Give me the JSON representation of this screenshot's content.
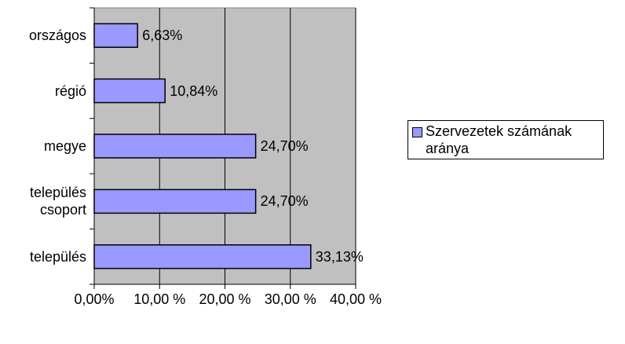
{
  "chart_data": {
    "type": "bar",
    "orientation": "horizontal",
    "categories": [
      "országos",
      "régió",
      "megye",
      "település csoport",
      "település"
    ],
    "series": [
      {
        "name": "Szervezetek számának aránya",
        "color": "#9999ff",
        "values": [
          6.63,
          10.84,
          24.7,
          24.7,
          33.13
        ],
        "value_labels": [
          "6,63%",
          "10,84%",
          "24,70%",
          "24,70%",
          "33,13%"
        ]
      }
    ],
    "xlim": [
      0,
      40
    ],
    "xticks": [
      {
        "value": 0,
        "label": "0,00%"
      },
      {
        "value": 10,
        "label": "10,00 %"
      },
      {
        "value": 20,
        "label": "20,00 %"
      },
      {
        "value": 30,
        "label": "30,00 %"
      },
      {
        "value": 40,
        "label": "40,00 %"
      }
    ],
    "grid": true,
    "legend": "right"
  }
}
